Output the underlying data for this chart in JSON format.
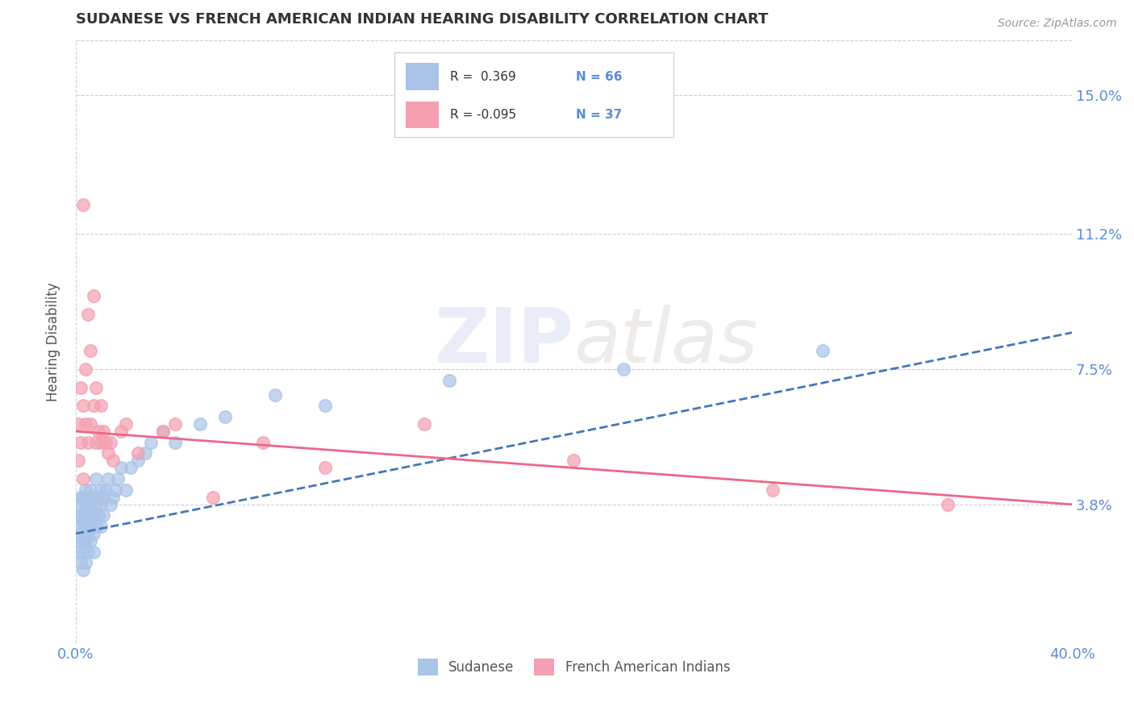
{
  "title": "SUDANESE VS FRENCH AMERICAN INDIAN HEARING DISABILITY CORRELATION CHART",
  "source": "Source: ZipAtlas.com",
  "ylabel": "Hearing Disability",
  "xlim": [
    0.0,
    0.4
  ],
  "ylim": [
    0.0,
    0.165
  ],
  "yticks": [
    0.038,
    0.075,
    0.112,
    0.15
  ],
  "ytick_labels": [
    "3.8%",
    "7.5%",
    "11.2%",
    "15.0%"
  ],
  "xticks": [
    0.0,
    0.4
  ],
  "xtick_labels": [
    "0.0%",
    "40.0%"
  ],
  "title_color": "#333333",
  "title_fontsize": 13,
  "axis_color": "#5b8dd9",
  "background_color": "#ffffff",
  "grid_color": "#ccccdd",
  "legend_r1": "R =  0.369",
  "legend_n1": "N = 66",
  "legend_r2": "R = -0.095",
  "legend_n2": "N = 37",
  "legend_label1": "Sudanese",
  "legend_label2": "French American Indians",
  "dot_color_blue": "#aac4e8",
  "dot_color_pink": "#f4a0b0",
  "line_color_blue": "#4477bb",
  "line_color_pink": "#ee6688",
  "sudanese_x": [
    0.001,
    0.001,
    0.001,
    0.002,
    0.002,
    0.002,
    0.002,
    0.002,
    0.003,
    0.003,
    0.003,
    0.003,
    0.003,
    0.003,
    0.004,
    0.004,
    0.004,
    0.004,
    0.004,
    0.004,
    0.005,
    0.005,
    0.005,
    0.005,
    0.005,
    0.005,
    0.006,
    0.006,
    0.006,
    0.006,
    0.006,
    0.007,
    0.007,
    0.007,
    0.007,
    0.008,
    0.008,
    0.008,
    0.009,
    0.009,
    0.01,
    0.01,
    0.01,
    0.011,
    0.011,
    0.012,
    0.013,
    0.014,
    0.015,
    0.016,
    0.017,
    0.018,
    0.02,
    0.022,
    0.025,
    0.028,
    0.03,
    0.035,
    0.04,
    0.05,
    0.06,
    0.08,
    0.1,
    0.15,
    0.22,
    0.3
  ],
  "sudanese_y": [
    0.032,
    0.038,
    0.025,
    0.03,
    0.035,
    0.028,
    0.04,
    0.022,
    0.033,
    0.04,
    0.028,
    0.035,
    0.025,
    0.02,
    0.038,
    0.032,
    0.028,
    0.035,
    0.022,
    0.042,
    0.035,
    0.03,
    0.04,
    0.025,
    0.032,
    0.038,
    0.035,
    0.042,
    0.028,
    0.032,
    0.038,
    0.03,
    0.04,
    0.035,
    0.025,
    0.038,
    0.032,
    0.045,
    0.035,
    0.04,
    0.032,
    0.042,
    0.038,
    0.04,
    0.035,
    0.042,
    0.045,
    0.038,
    0.04,
    0.042,
    0.045,
    0.048,
    0.042,
    0.048,
    0.05,
    0.052,
    0.055,
    0.058,
    0.055,
    0.06,
    0.062,
    0.068,
    0.065,
    0.072,
    0.075,
    0.08
  ],
  "french_x": [
    0.001,
    0.001,
    0.002,
    0.002,
    0.003,
    0.003,
    0.003,
    0.004,
    0.004,
    0.005,
    0.005,
    0.006,
    0.006,
    0.007,
    0.007,
    0.008,
    0.008,
    0.009,
    0.01,
    0.01,
    0.011,
    0.012,
    0.013,
    0.014,
    0.015,
    0.018,
    0.02,
    0.025,
    0.035,
    0.04,
    0.055,
    0.075,
    0.1,
    0.14,
    0.2,
    0.28,
    0.35
  ],
  "french_y": [
    0.05,
    0.06,
    0.055,
    0.07,
    0.045,
    0.065,
    0.12,
    0.06,
    0.075,
    0.055,
    0.09,
    0.06,
    0.08,
    0.065,
    0.095,
    0.055,
    0.07,
    0.058,
    0.055,
    0.065,
    0.058,
    0.055,
    0.052,
    0.055,
    0.05,
    0.058,
    0.06,
    0.052,
    0.058,
    0.06,
    0.04,
    0.055,
    0.048,
    0.06,
    0.05,
    0.042,
    0.038
  ],
  "line_blue_x0": 0.0,
  "line_blue_y0": 0.03,
  "line_blue_x1": 0.4,
  "line_blue_y1": 0.085,
  "line_pink_x0": 0.0,
  "line_pink_y0": 0.058,
  "line_pink_x1": 0.4,
  "line_pink_y1": 0.038
}
